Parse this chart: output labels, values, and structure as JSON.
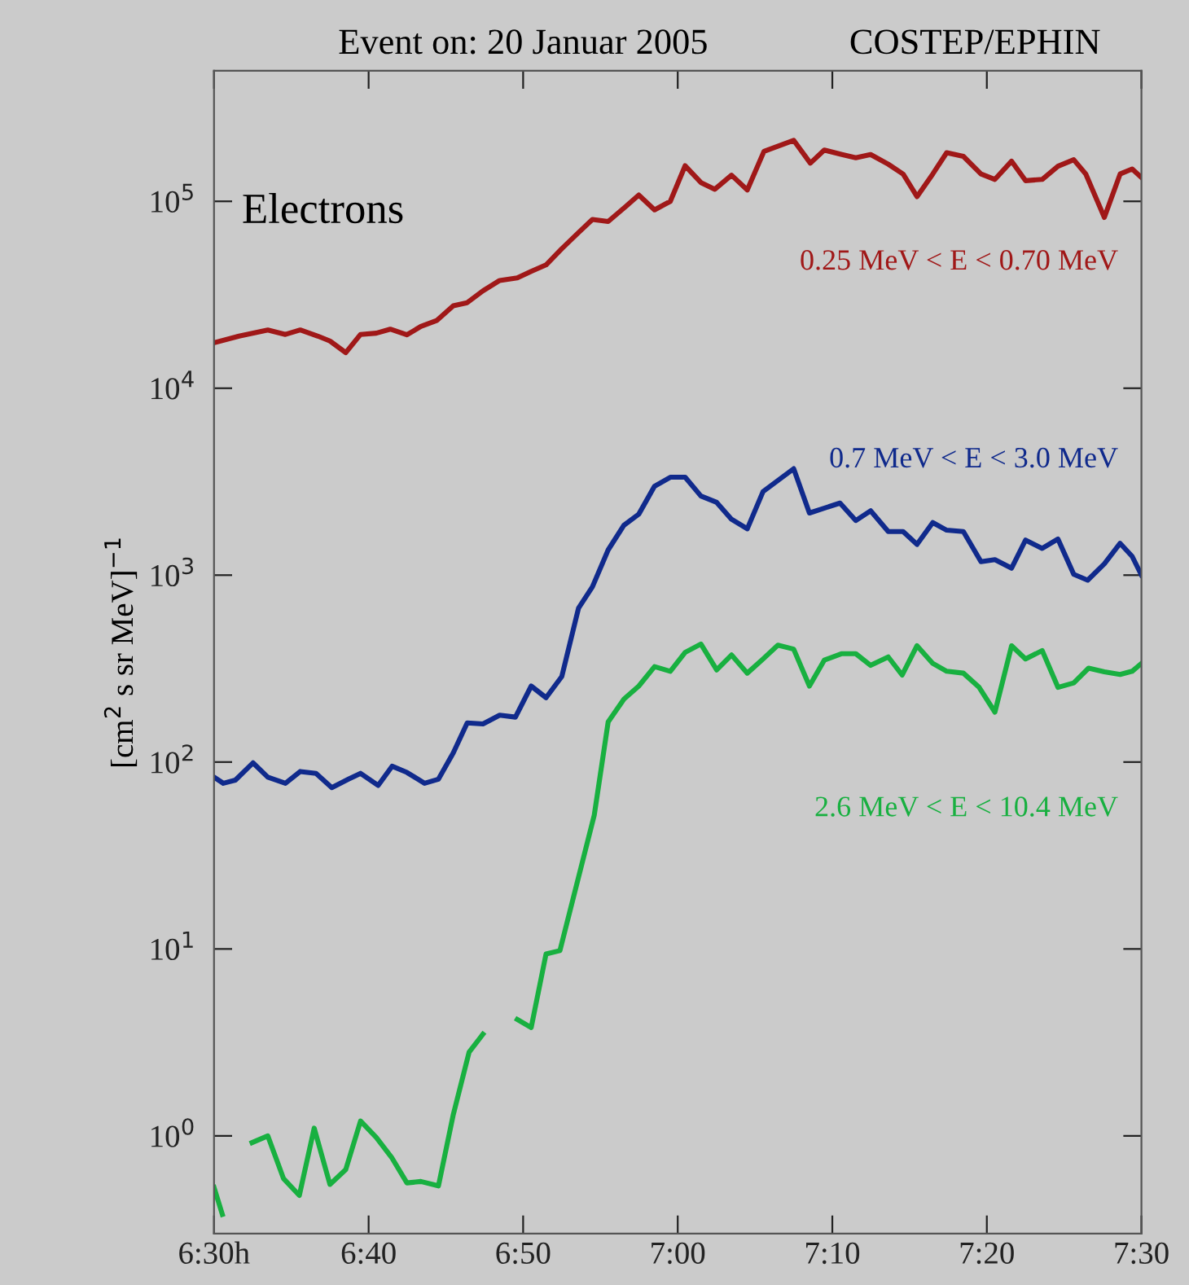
{
  "chart_data": {
    "type": "line",
    "title": "Event on: 20 Januar 2005",
    "subtitle": "COSTEP/EPHIN",
    "ylabel": "[cm$^{2}$ s sr MeV]$^{−1}$",
    "annotations": [
      "Electrons"
    ],
    "log": "y",
    "grid": false,
    "legend": false,
    "marker": "none",
    "line_style": "solid",
    "xlim": [
      6.5,
      7.5
    ],
    "xticks": [
      {
        "value": 6.5,
        "label": "6:30h"
      },
      {
        "value": 6.6667,
        "label": "6:40"
      },
      {
        "value": 6.8333,
        "label": "6:50"
      },
      {
        "value": 7.0,
        "label": "7:00"
      },
      {
        "value": 7.1667,
        "label": "7:10"
      },
      {
        "value": 7.3333,
        "label": "7:20"
      },
      {
        "value": 7.5,
        "label": "7:30"
      }
    ],
    "ylim": [
      0.3,
      500000
    ],
    "yticks": [
      {
        "value": 1,
        "label": "10$^{0}$"
      },
      {
        "value": 10,
        "label": "10$^{1}$"
      },
      {
        "value": 100,
        "label": "10$^{2}$"
      },
      {
        "value": 1000,
        "label": "10$^{3}$"
      },
      {
        "value": 10000,
        "label": "10$^{4}$"
      },
      {
        "value": 100000,
        "label": "10$^{5}$"
      }
    ],
    "series": [
      {
        "name": "0.25 MeV < E < 0.70 MeV",
        "color": "#a01818",
        "x": [
          6.5,
          6.527,
          6.558,
          6.577,
          6.593,
          6.612,
          6.625,
          6.642,
          6.658,
          6.675,
          6.69,
          6.708,
          6.723,
          6.74,
          6.758,
          6.773,
          6.79,
          6.808,
          6.827,
          6.842,
          6.858,
          6.875,
          6.893,
          6.908,
          6.925,
          6.942,
          6.958,
          6.975,
          6.992,
          7.008,
          7.025,
          7.04,
          7.058,
          7.075,
          7.093,
          7.125,
          7.143,
          7.158,
          7.177,
          7.192,
          7.208,
          7.227,
          7.243,
          7.258,
          7.275,
          7.29,
          7.308,
          7.327,
          7.342,
          7.36,
          7.375,
          7.393,
          7.41,
          7.427,
          7.44,
          7.46,
          7.477,
          7.49,
          7.5
        ],
        "values": [
          17500,
          19000,
          20500,
          19400,
          20500,
          19000,
          17900,
          15500,
          19400,
          19700,
          20700,
          19300,
          21400,
          23000,
          27600,
          28700,
          33200,
          37700,
          38900,
          42200,
          45700,
          55800,
          68000,
          80000,
          78000,
          92000,
          108000,
          90000,
          100000,
          155000,
          126000,
          116000,
          138000,
          115000,
          185000,
          212000,
          160000,
          188000,
          178000,
          171000,
          178000,
          158000,
          140000,
          106000,
          140000,
          182000,
          174000,
          140000,
          131000,
          164000,
          129000,
          131000,
          154000,
          167000,
          140000,
          82000,
          140000,
          149000,
          134000
        ]
      },
      {
        "name": "0.7 MeV < E < 3.0 MeV",
        "color": "#102a8c",
        "x": [
          6.5,
          6.51,
          6.523,
          6.542,
          6.558,
          6.577,
          6.593,
          6.61,
          6.627,
          6.645,
          6.658,
          6.677,
          6.692,
          6.708,
          6.727,
          6.742,
          6.758,
          6.773,
          6.79,
          6.808,
          6.825,
          6.842,
          6.858,
          6.875,
          6.893,
          6.908,
          6.925,
          6.942,
          6.958,
          6.975,
          6.992,
          7.008,
          7.025,
          7.042,
          7.058,
          7.075,
          7.092,
          7.125,
          7.142,
          7.175,
          7.192,
          7.208,
          7.227,
          7.243,
          7.258,
          7.275,
          7.29,
          7.308,
          7.327,
          7.342,
          7.36,
          7.375,
          7.393,
          7.41,
          7.427,
          7.442,
          7.46,
          7.477,
          7.49,
          7.5
        ],
        "values": [
          83,
          77,
          80,
          99,
          83,
          77,
          89,
          87,
          73,
          81,
          87,
          75,
          95,
          88,
          77,
          81,
          112,
          162,
          160,
          178,
          174,
          255,
          221,
          287,
          665,
          866,
          1365,
          1850,
          2120,
          2990,
          3340,
          3340,
          2650,
          2450,
          1990,
          1770,
          2800,
          3710,
          2150,
          2430,
          1960,
          2210,
          1710,
          1710,
          1460,
          1910,
          1740,
          1710,
          1180,
          1210,
          1090,
          1540,
          1390,
          1560,
          1010,
          940,
          1150,
          1480,
          1260,
          1000
        ]
      },
      {
        "name": "2.6 MeV < E < 10.4 MeV",
        "color": "#18b040",
        "x": [
          6.5,
          6.509,
          6.52,
          6.541,
          6.558,
          6.575,
          6.592,
          6.608,
          6.625,
          6.642,
          6.658,
          6.675,
          6.692,
          6.708,
          6.723,
          6.742,
          6.758,
          6.775,
          6.79,
          6.81,
          6.827,
          6.842,
          6.858,
          6.873,
          6.91,
          6.925,
          6.942,
          6.958,
          6.975,
          6.992,
          7.008,
          7.025,
          7.042,
          7.058,
          7.075,
          7.092,
          7.108,
          7.125,
          7.142,
          7.158,
          7.177,
          7.192,
          7.208,
          7.227,
          7.242,
          7.258,
          7.275,
          7.29,
          7.308,
          7.325,
          7.342,
          7.36,
          7.375,
          7.393,
          7.41,
          7.427,
          7.443,
          7.46,
          7.477,
          7.49,
          7.5
        ],
        "values": [
          0.53,
          0.38,
          null,
          0.92,
          1.0,
          0.59,
          0.48,
          1.1,
          0.55,
          0.66,
          1.2,
          0.98,
          0.76,
          0.56,
          0.57,
          0.54,
          1.3,
          2.8,
          3.5,
          null,
          4.2,
          3.8,
          9.4,
          9.8,
          52,
          164,
          217,
          255,
          324,
          306,
          386,
          428,
          311,
          374,
          299,
          356,
          422,
          402,
          255,
          351,
          380,
          380,
          329,
          365,
          292,
          419,
          337,
          306,
          299,
          251,
          185,
          419,
          356,
          395,
          251,
          265,
          318,
          304,
          294,
          306,
          337
        ]
      }
    ]
  }
}
